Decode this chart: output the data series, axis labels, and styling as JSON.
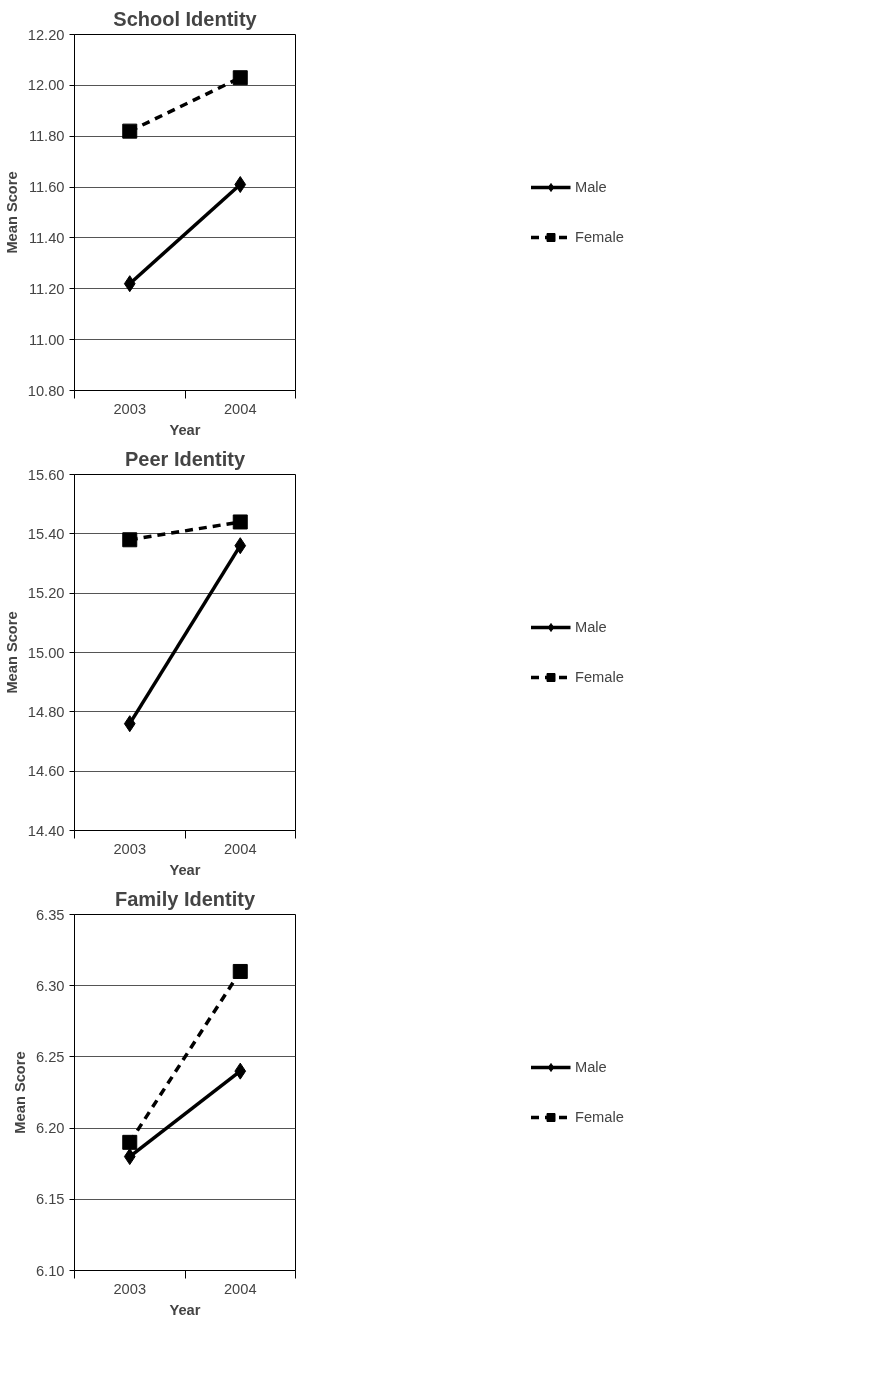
{
  "chart_data": [
    {
      "type": "line",
      "title": "School Identity",
      "xlabel": "Year",
      "ylabel": "Mean Score",
      "categories": [
        "2003",
        "2004"
      ],
      "ylim": [
        10.8,
        12.2
      ],
      "yticks": [
        {
          "value": 10.8,
          "label": "10.80"
        },
        {
          "value": 11.0,
          "label": "11.00"
        },
        {
          "value": 11.2,
          "label": "11.20"
        },
        {
          "value": 11.4,
          "label": "11.40"
        },
        {
          "value": 11.6,
          "label": "11.60"
        },
        {
          "value": 11.8,
          "label": "11.80"
        },
        {
          "value": 12.0,
          "label": "12.00"
        },
        {
          "value": 12.2,
          "label": "12.20"
        }
      ],
      "grid": "y",
      "legend": "right",
      "series": [
        {
          "name": "Male",
          "color": "#000000",
          "values": [
            11.22,
            11.61
          ],
          "marker": "diamond",
          "line_style": "solid"
        },
        {
          "name": "Female",
          "color": "#000000",
          "values": [
            11.82,
            12.03
          ],
          "marker": "square",
          "line_style": "dashed"
        }
      ]
    },
    {
      "type": "line",
      "title": "Peer Identity",
      "xlabel": "Year",
      "ylabel": "Mean Score",
      "categories": [
        "2003",
        "2004"
      ],
      "ylim": [
        14.4,
        15.6
      ],
      "yticks": [
        {
          "value": 14.4,
          "label": "14.40"
        },
        {
          "value": 14.6,
          "label": "14.60"
        },
        {
          "value": 14.8,
          "label": "14.80"
        },
        {
          "value": 15.0,
          "label": "15.00"
        },
        {
          "value": 15.2,
          "label": "15.20"
        },
        {
          "value": 15.4,
          "label": "15.40"
        },
        {
          "value": 15.6,
          "label": "15.60"
        }
      ],
      "grid": "y",
      "legend": "right",
      "series": [
        {
          "name": "Male",
          "color": "#000000",
          "values": [
            14.76,
            15.36
          ],
          "marker": "diamond",
          "line_style": "solid"
        },
        {
          "name": "Female",
          "color": "#000000",
          "values": [
            15.38,
            15.44
          ],
          "marker": "square",
          "line_style": "dashed"
        }
      ]
    },
    {
      "type": "line",
      "title": "Family Identity",
      "xlabel": "Year",
      "ylabel": "Mean Score",
      "categories": [
        "2003",
        "2004"
      ],
      "ylim": [
        6.1,
        6.35
      ],
      "yticks": [
        {
          "value": 6.1,
          "label": "6.10"
        },
        {
          "value": 6.15,
          "label": "6.15"
        },
        {
          "value": 6.2,
          "label": "6.20"
        },
        {
          "value": 6.25,
          "label": "6.25"
        },
        {
          "value": 6.3,
          "label": "6.30"
        },
        {
          "value": 6.35,
          "label": "6.35"
        }
      ],
      "grid": "y",
      "legend": "right",
      "series": [
        {
          "name": "Male",
          "color": "#000000",
          "values": [
            6.18,
            6.24
          ],
          "marker": "diamond",
          "line_style": "solid"
        },
        {
          "name": "Female",
          "color": "#000000",
          "values": [
            6.19,
            6.31
          ],
          "marker": "square",
          "line_style": "dashed"
        }
      ]
    }
  ]
}
